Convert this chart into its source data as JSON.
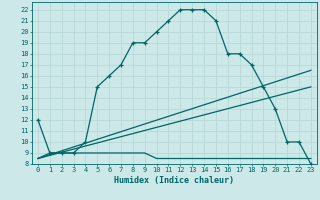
{
  "title": "",
  "xlabel": "Humidex (Indice chaleur)",
  "bg_color": "#cce8e8",
  "grid_color": "#aad4d4",
  "line_color": "#006666",
  "xlim": [
    -0.5,
    23.5
  ],
  "ylim": [
    8,
    22.7
  ],
  "xticks": [
    0,
    1,
    2,
    3,
    4,
    5,
    6,
    7,
    8,
    9,
    10,
    11,
    12,
    13,
    14,
    15,
    16,
    17,
    18,
    19,
    20,
    21,
    22,
    23
  ],
  "yticks": [
    8,
    9,
    10,
    11,
    12,
    13,
    14,
    15,
    16,
    17,
    18,
    19,
    20,
    21,
    22
  ],
  "series1_x": [
    0,
    1,
    2,
    3,
    4,
    5,
    6,
    7,
    8,
    9,
    10,
    11,
    12,
    13,
    14,
    15,
    16,
    17,
    18,
    19,
    20,
    21,
    22,
    23
  ],
  "series1_y": [
    12,
    9,
    9,
    9,
    10,
    15,
    16,
    17,
    19,
    19,
    20,
    21,
    22,
    22,
    22,
    21,
    18,
    18,
    17,
    15,
    13,
    10,
    10,
    8
  ],
  "series2_x": [
    0,
    1,
    2,
    3,
    4,
    5,
    6,
    7,
    8,
    9,
    10,
    11,
    12,
    13,
    14,
    15,
    16,
    17,
    18,
    19,
    20,
    21,
    22,
    23
  ],
  "series2_y": [
    8.5,
    9,
    9,
    9,
    9,
    9,
    9,
    9,
    9,
    9,
    8.5,
    8.5,
    8.5,
    8.5,
    8.5,
    8.5,
    8.5,
    8.5,
    8.5,
    8.5,
    8.5,
    8.5,
    8.5,
    8.5
  ],
  "series3_x": [
    0,
    23
  ],
  "series3_y": [
    8.5,
    15.0
  ],
  "series4_x": [
    0,
    23
  ],
  "series4_y": [
    8.5,
    16.5
  ]
}
